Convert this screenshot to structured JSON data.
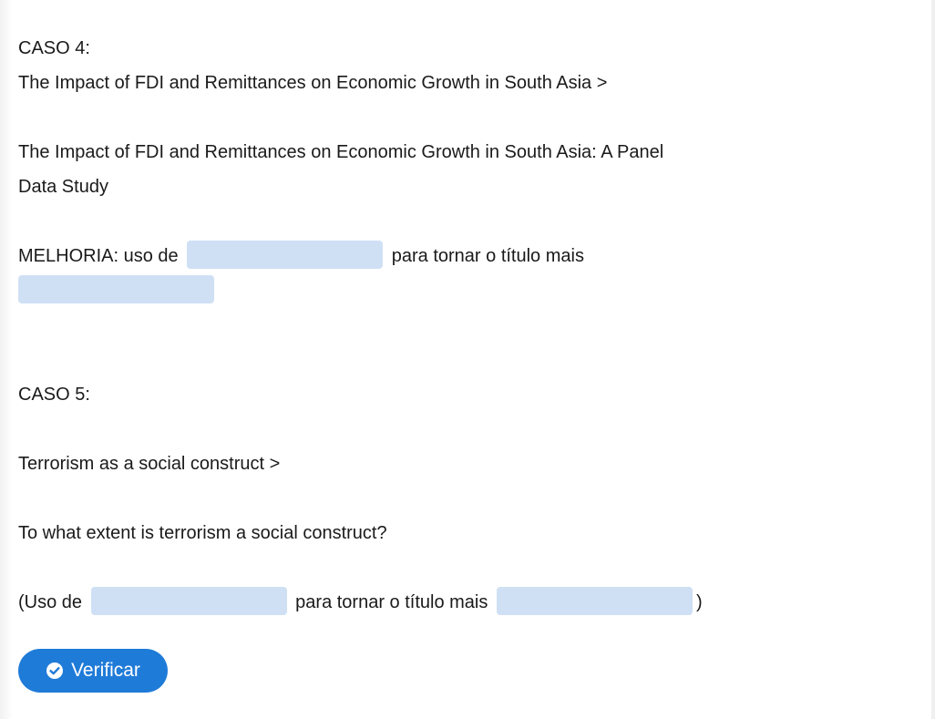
{
  "case4": {
    "heading": "CASO 4:",
    "original_title": "The Impact of FDI and Remittances on Economic Growth in South Asia >",
    "improved_title_line1": "The Impact of FDI and Remittances on Economic Growth in South Asia: A Panel",
    "improved_title_line2": "Data Study",
    "improvement_prefix": "MELHORIA: uso de",
    "improvement_middle": "para tornar o título mais",
    "blank1_value": "",
    "blank2_value": ""
  },
  "case5": {
    "heading": "CASO 5:",
    "original_title": "Terrorism as a social construct >",
    "improved_title": "To what extent is terrorism a social construct?",
    "usage_prefix": "(Uso de",
    "usage_middle": "para tornar o título mais",
    "usage_suffix": ")",
    "blank1_value": "",
    "blank2_value": ""
  },
  "button": {
    "label": "Verificar",
    "icon": "check-circle-icon",
    "color": "#1f7bd8"
  },
  "colors": {
    "blank_fill": "#cfe0f5",
    "text": "#1a1a1a"
  }
}
